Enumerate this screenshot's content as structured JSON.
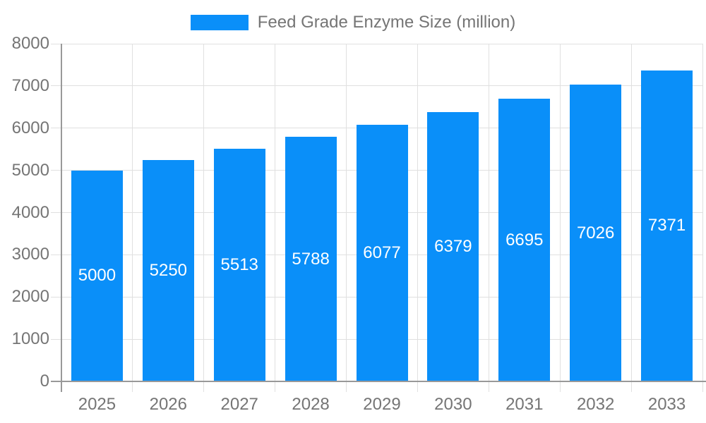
{
  "page": {
    "background_color": "#ffffff"
  },
  "chart_data": {
    "type": "bar",
    "title": "Feed Grade Enzyme Size (million)",
    "legend": {
      "position": "top",
      "label": "Feed Grade Enzyme Size (million)"
    },
    "categories": [
      "2025",
      "2026",
      "2027",
      "2028",
      "2029",
      "2030",
      "2031",
      "2032",
      "2033"
    ],
    "values": [
      5000,
      5250,
      5513,
      5788,
      6077,
      6379,
      6695,
      7026,
      7371
    ],
    "xlabel": "",
    "ylabel": "",
    "ylim": [
      0,
      8000
    ],
    "ytick_step": 1000,
    "ytick_labels": [
      "0",
      "1000",
      "2000",
      "3000",
      "4000",
      "5000",
      "6000",
      "7000",
      "8000"
    ],
    "grid": true,
    "value_labels_inside_bars": true,
    "colors": {
      "bar_fill": "#0a8ff9",
      "value_label": "#ffffff",
      "grid": "#e0e0e0",
      "axis": "#999999",
      "tick_text": "#757575",
      "legend_text": "#757575"
    }
  }
}
